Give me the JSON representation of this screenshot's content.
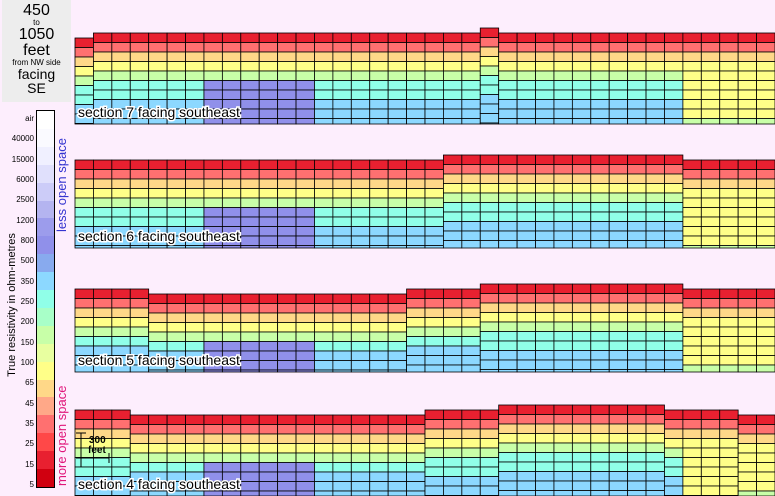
{
  "title": {
    "line1": "450",
    "line2": "to",
    "line3": "1050",
    "line4": "feet",
    "line5": "from NW side",
    "line6": "facing",
    "line7": "SE"
  },
  "legend": {
    "axis_title": "True resistivity in ohm-metres",
    "less_label": "less open space",
    "more_label": "more open space",
    "ticks": [
      "air",
      "40000",
      "15000",
      "6000",
      "2500",
      "1200",
      "800",
      "500",
      "350",
      "250",
      "200",
      "150",
      "100",
      "65",
      "45",
      "35",
      "25",
      "15",
      "5"
    ],
    "colors": [
      "#ffffff",
      "#fafaff",
      "#f0f0ff",
      "#e0e0fc",
      "#ccccf8",
      "#b4b4f0",
      "#9c9cec",
      "#9090ea",
      "#88aaee",
      "#8cd8ff",
      "#90ffe8",
      "#a8ffc8",
      "#c8ffa8",
      "#e8ffa0",
      "#ffff88",
      "#ffd888",
      "#ffa888",
      "#ff7070",
      "#ff4848",
      "#e82030",
      "#d00010"
    ]
  },
  "scale_bar": {
    "label1": "300",
    "label2": "feet"
  },
  "chart_data": [
    {
      "type": "heatmap",
      "title": "section 7 facing southeast",
      "columns": 38,
      "rows": 8,
      "surface_depth": [
        2,
        1,
        1,
        1,
        1,
        1,
        1,
        1,
        1,
        1,
        1,
        1,
        1,
        1,
        1,
        1,
        1,
        1,
        1,
        1,
        1,
        1,
        0,
        1,
        1,
        1,
        1,
        1,
        1,
        1,
        1,
        1,
        1,
        1,
        1,
        1,
        1,
        1
      ],
      "classes": [
        [
          13,
          13,
          14,
          14,
          14,
          14,
          14,
          13,
          14,
          15,
          15,
          14,
          14,
          15,
          15,
          15,
          15,
          15,
          15,
          15,
          15,
          15,
          15,
          15,
          15,
          15,
          14,
          14,
          14,
          14,
          14,
          14,
          13,
          13,
          13,
          13,
          12,
          12
        ],
        [
          10,
          10,
          10,
          10,
          9,
          9,
          8,
          8,
          8,
          8,
          8,
          8,
          9,
          10,
          10,
          10,
          10,
          11,
          11,
          11,
          11,
          11,
          11,
          10,
          10,
          10,
          10,
          10,
          10,
          10,
          10,
          10,
          11,
          11,
          11,
          11,
          11,
          11
        ]
      ]
    },
    {
      "type": "heatmap",
      "title": "section 6 facing southeast",
      "columns": 38,
      "rows": 8,
      "surface_depth": [
        2,
        2,
        2,
        2,
        2,
        2,
        2,
        2,
        2,
        2,
        2,
        2,
        2,
        2,
        2,
        2,
        2,
        2,
        2,
        2,
        1,
        1,
        1,
        1,
        1,
        1,
        1,
        1,
        1,
        1,
        1,
        1,
        1,
        2,
        2,
        2,
        2,
        2
      ],
      "classes": [
        [
          13,
          13,
          14,
          14,
          14,
          14,
          14,
          13,
          14,
          15,
          15,
          14,
          14,
          15,
          15,
          15,
          15,
          15,
          15,
          15,
          15,
          15,
          15,
          15,
          15,
          15,
          14,
          14,
          14,
          14,
          14,
          14,
          13,
          13,
          13,
          13,
          12,
          12
        ],
        [
          10,
          10,
          10,
          10,
          9,
          9,
          8,
          8,
          8,
          8,
          8,
          8,
          9,
          10,
          10,
          10,
          10,
          11,
          11,
          11,
          11,
          11,
          11,
          10,
          10,
          10,
          10,
          10,
          10,
          10,
          10,
          10,
          11,
          11,
          11,
          11,
          11,
          11
        ]
      ]
    },
    {
      "type": "heatmap",
      "title": "section 5 facing southeast",
      "columns": 38,
      "rows": 8,
      "surface_depth": [
        3,
        3,
        3,
        3,
        4,
        4,
        4,
        4,
        4,
        4,
        4,
        4,
        4,
        4,
        4,
        4,
        4,
        4,
        3,
        3,
        3,
        3,
        2,
        2,
        2,
        2,
        2,
        2,
        2,
        2,
        2,
        2,
        2,
        3,
        3,
        3,
        3,
        3
      ],
      "classes": [
        [
          13,
          13,
          14,
          14,
          14,
          14,
          14,
          13,
          14,
          15,
          15,
          14,
          14,
          15,
          15,
          15,
          15,
          15,
          15,
          15,
          15,
          15,
          15,
          15,
          15,
          15,
          14,
          14,
          14,
          14,
          14,
          14,
          13,
          13,
          13,
          13,
          12,
          12
        ],
        [
          10,
          10,
          10,
          10,
          9,
          9,
          8,
          8,
          8,
          8,
          8,
          8,
          9,
          10,
          10,
          10,
          10,
          11,
          11,
          11,
          11,
          11,
          11,
          10,
          10,
          10,
          10,
          10,
          10,
          10,
          10,
          10,
          11,
          11,
          11,
          11,
          11,
          11
        ]
      ]
    },
    {
      "type": "heatmap",
      "title": "section 4 facing southeast",
      "columns": 38,
      "rows": 8,
      "surface_depth": [
        2,
        2,
        2,
        3,
        3,
        3,
        3,
        3,
        3,
        3,
        3,
        3,
        3,
        3,
        3,
        3,
        3,
        3,
        3,
        2,
        2,
        2,
        2,
        1,
        1,
        1,
        1,
        1,
        1,
        1,
        1,
        1,
        2,
        2,
        2,
        2,
        3,
        3
      ],
      "classes": [
        [
          13,
          13,
          14,
          14,
          14,
          14,
          14,
          13,
          14,
          15,
          15,
          14,
          14,
          15,
          15,
          15,
          15,
          15,
          15,
          15,
          15,
          15,
          15,
          15,
          15,
          15,
          14,
          14,
          14,
          14,
          14,
          14,
          13,
          13,
          13,
          13,
          12,
          12
        ],
        [
          10,
          10,
          10,
          10,
          9,
          9,
          8,
          8,
          8,
          8,
          8,
          8,
          9,
          10,
          10,
          10,
          10,
          11,
          11,
          11,
          11,
          11,
          11,
          10,
          10,
          10,
          10,
          10,
          10,
          10,
          10,
          10,
          11,
          11,
          11,
          11,
          11,
          11
        ]
      ]
    }
  ]
}
